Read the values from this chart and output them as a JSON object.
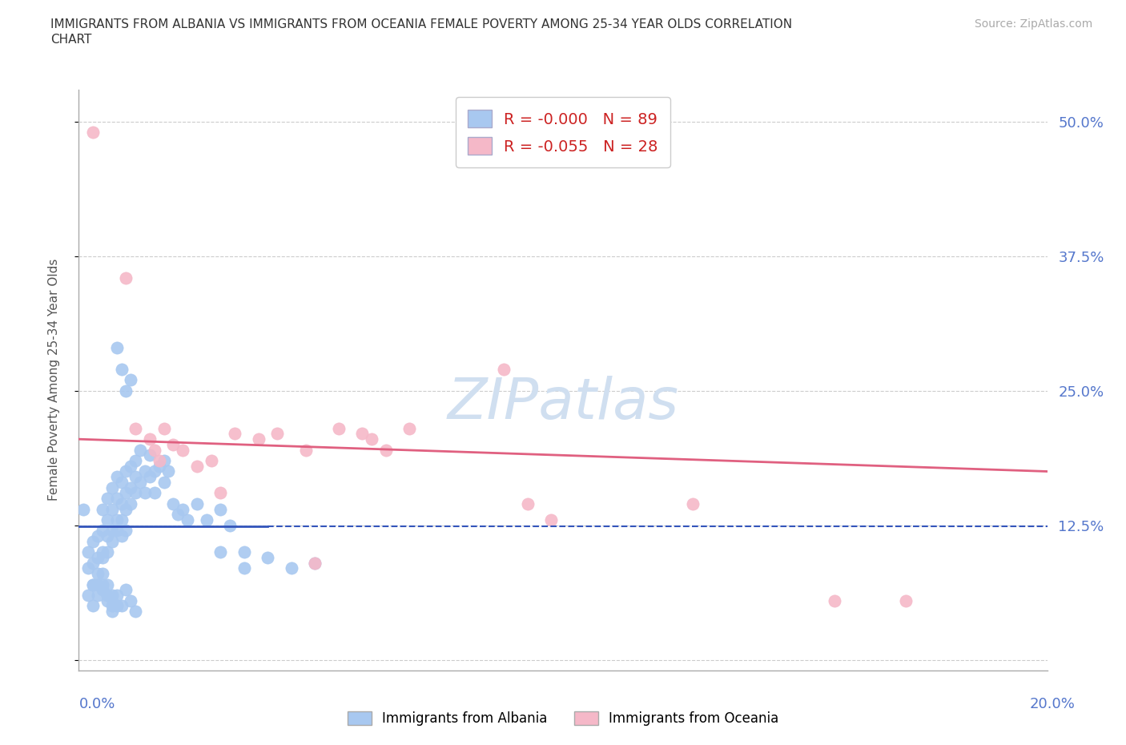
{
  "title_line1": "IMMIGRANTS FROM ALBANIA VS IMMIGRANTS FROM OCEANIA FEMALE POVERTY AMONG 25-34 YEAR OLDS CORRELATION",
  "title_line2": "CHART",
  "source": "Source: ZipAtlas.com",
  "ylabel": "Female Poverty Among 25-34 Year Olds",
  "legend_r_albania": "-0.000",
  "legend_n_albania": "89",
  "legend_r_oceania": "-0.055",
  "legend_n_oceania": "28",
  "albania_color": "#a8c8f0",
  "oceania_color": "#f5b8c8",
  "albania_line_color": "#3355bb",
  "oceania_line_color": "#e06080",
  "watermark_color": "#d0dff0",
  "ytick_color": "#5577cc",
  "xtick_color": "#5577cc",
  "albania_x": [
    0.001,
    0.002,
    0.002,
    0.003,
    0.003,
    0.003,
    0.004,
    0.004,
    0.004,
    0.005,
    0.005,
    0.005,
    0.005,
    0.006,
    0.006,
    0.006,
    0.006,
    0.007,
    0.007,
    0.007,
    0.007,
    0.008,
    0.008,
    0.008,
    0.008,
    0.009,
    0.009,
    0.009,
    0.009,
    0.01,
    0.01,
    0.01,
    0.01,
    0.011,
    0.011,
    0.011,
    0.012,
    0.012,
    0.012,
    0.013,
    0.013,
    0.014,
    0.014,
    0.015,
    0.015,
    0.016,
    0.016,
    0.017,
    0.018,
    0.018,
    0.019,
    0.02,
    0.021,
    0.022,
    0.023,
    0.025,
    0.027,
    0.03,
    0.032,
    0.035,
    0.003,
    0.005,
    0.006,
    0.007,
    0.008,
    0.009,
    0.01,
    0.011,
    0.012,
    0.004,
    0.005,
    0.006,
    0.007,
    0.008,
    0.002,
    0.003,
    0.004,
    0.005,
    0.006,
    0.007,
    0.008,
    0.009,
    0.01,
    0.011,
    0.03,
    0.035,
    0.04,
    0.045,
    0.05
  ],
  "albania_y": [
    0.14,
    0.085,
    0.1,
    0.07,
    0.09,
    0.11,
    0.08,
    0.095,
    0.115,
    0.1,
    0.12,
    0.095,
    0.14,
    0.115,
    0.13,
    0.1,
    0.15,
    0.12,
    0.14,
    0.16,
    0.11,
    0.13,
    0.15,
    0.17,
    0.12,
    0.145,
    0.165,
    0.13,
    0.115,
    0.155,
    0.175,
    0.14,
    0.12,
    0.16,
    0.18,
    0.145,
    0.17,
    0.155,
    0.185,
    0.165,
    0.195,
    0.175,
    0.155,
    0.19,
    0.17,
    0.175,
    0.155,
    0.18,
    0.185,
    0.165,
    0.175,
    0.145,
    0.135,
    0.14,
    0.13,
    0.145,
    0.13,
    0.14,
    0.125,
    0.1,
    0.05,
    0.065,
    0.055,
    0.045,
    0.06,
    0.05,
    0.065,
    0.055,
    0.045,
    0.07,
    0.08,
    0.07,
    0.06,
    0.05,
    0.06,
    0.07,
    0.06,
    0.07,
    0.06,
    0.05,
    0.29,
    0.27,
    0.25,
    0.26,
    0.1,
    0.085,
    0.095,
    0.085,
    0.09
  ],
  "oceania_x": [
    0.003,
    0.01,
    0.012,
    0.015,
    0.016,
    0.017,
    0.018,
    0.02,
    0.022,
    0.025,
    0.028,
    0.03,
    0.033,
    0.038,
    0.042,
    0.048,
    0.05,
    0.055,
    0.06,
    0.062,
    0.065,
    0.07,
    0.09,
    0.095,
    0.1,
    0.13,
    0.16,
    0.175
  ],
  "oceania_y": [
    0.49,
    0.355,
    0.215,
    0.205,
    0.195,
    0.185,
    0.215,
    0.2,
    0.195,
    0.18,
    0.185,
    0.155,
    0.21,
    0.205,
    0.21,
    0.195,
    0.09,
    0.215,
    0.21,
    0.205,
    0.195,
    0.215,
    0.27,
    0.145,
    0.13,
    0.145,
    0.055,
    0.055
  ],
  "xlim": [
    0.0,
    0.205
  ],
  "ylim": [
    -0.01,
    0.53
  ],
  "ytick_positions": [
    0.0,
    0.125,
    0.25,
    0.375,
    0.5
  ],
  "ytick_labels": [
    "",
    "12.5%",
    "25.0%",
    "37.5%",
    "50.0%"
  ]
}
